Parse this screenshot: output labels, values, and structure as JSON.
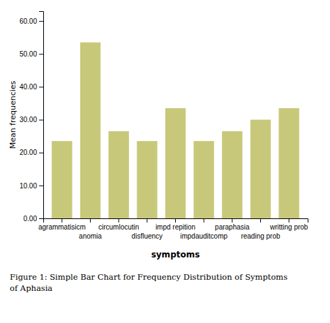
{
  "chart_data": {
    "type": "bar",
    "categories": [
      "agrammatisicm",
      "anomia",
      "circumlocutin",
      "disfluency",
      "impd repition",
      "impdauditcomp",
      "paraphasia",
      "reading prob",
      "writting prob"
    ],
    "values": [
      23.5,
      53.5,
      26.5,
      23.5,
      33.5,
      23.5,
      26.5,
      30.0,
      33.5
    ],
    "color": "#c8c87a",
    "xlabel": "symptoms",
    "ylabel": "Mean frequencies",
    "caption": "Figure 1: Simple Bar Chart for Frequency Distribution of Symptoms\nof Aphasia",
    "ylim": [
      0,
      63
    ],
    "yticks": [
      {
        "value": 0,
        "label": "0.00"
      },
      {
        "value": 10,
        "label": "10.00"
      },
      {
        "value": 20,
        "label": "20.00"
      },
      {
        "value": 30,
        "label": "30.00"
      },
      {
        "value": 40,
        "label": "40.00"
      },
      {
        "value": 50,
        "label": "50.00"
      },
      {
        "value": 60,
        "label": "60.00"
      }
    ],
    "grid": false
  }
}
